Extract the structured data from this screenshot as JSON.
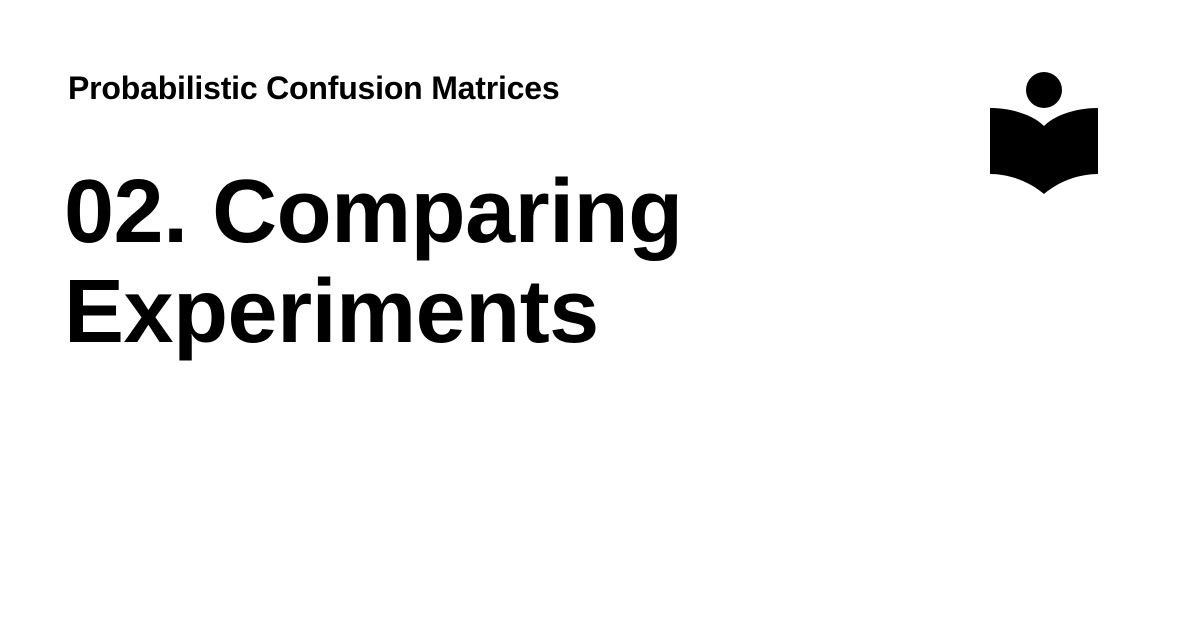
{
  "card": {
    "book_title": "Probabilistic Confusion Matrices",
    "page_title": "02. Comparing Experiments",
    "logo_icon": "reader-book-icon"
  },
  "colors": {
    "background": "#ffffff",
    "text": "#000000"
  }
}
